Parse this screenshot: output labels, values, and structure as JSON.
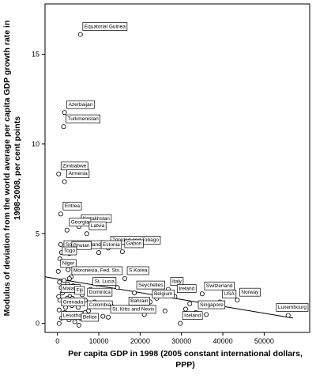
{
  "chart_data": {
    "type": "scatter",
    "x_label": [
      "Per capita GDP in 1998 (2005 constant international dollars,",
      "PPP)"
    ],
    "y_label": [
      "Modulus of deviation from the world average per capita GDP growth rate in",
      "1998-2008, per cent points"
    ],
    "xlim": [
      -3000,
      61000
    ],
    "ylim": [
      -0.5,
      17.8
    ],
    "xticks": [
      0,
      10000,
      20000,
      30000,
      40000,
      50000
    ],
    "yticks": [
      0,
      5,
      10,
      15
    ],
    "grid": false,
    "labeled_points": {
      "labels": [
        "Equatorial Guinea",
        "Azerbaijan",
        "Turkmenistan",
        "Zimbabwe",
        "Armenia",
        "Eritrea",
        "Kazakhstan",
        "Georgia",
        "Latvia",
        "Trinidad and Tobago",
        "Solomon Islands",
        "Bhutan",
        "Estonia",
        "Gabon",
        "Togo",
        "Niger",
        "Moronesia, Fed. Sts.",
        "S.Korea",
        "Italy",
        "St. Lucia",
        "Seychelles",
        "Switzerland",
        "Malawi",
        "Fiji",
        "Ireland",
        "Norway",
        "USA",
        "Dominica",
        "Belgium",
        "Bahrain",
        "Grenada",
        "Colombia",
        "Singapore",
        "Luxembourg",
        "St. Kitts and Nevis",
        "Iceland",
        "Lesotho",
        "Belize"
      ],
      "x": [
        5560,
        1700,
        1500,
        300,
        1700,
        800,
        5200,
        2300,
        7100,
        12300,
        1000,
        2900,
        10000,
        15700,
        600,
        200,
        2900,
        16300,
        26800,
        8000,
        18600,
        35000,
        300,
        3600,
        28400,
        43500,
        39300,
        6700,
        22400,
        16700,
        400,
        6700,
        33500,
        55800,
        12300,
        29700,
        400,
        5200
      ],
      "y": [
        16.1,
        11.75,
        10.96,
        8.33,
        7.9,
        6.1,
        5.4,
        5.2,
        5.0,
        4.2,
        3.95,
        3.9,
        3.95,
        4.0,
        3.6,
        2.9,
        2.5,
        2.5,
        1.9,
        1.9,
        1.7,
        1.65,
        1.5,
        1.4,
        1.5,
        1.3,
        1.2,
        1.3,
        1.2,
        0.8,
        0.75,
        0.6,
        0.6,
        0.45,
        0.35,
        0.0,
        0.0,
        -0.1
      ]
    },
    "other_points": {
      "x": [
        500,
        900,
        1200,
        1500,
        2000,
        2500,
        3000,
        3500,
        4000,
        4500,
        1000,
        1800,
        2200,
        2800,
        3300,
        600,
        1400,
        2600,
        3800,
        5000,
        6000,
        7500,
        9000,
        11000,
        13000,
        14500,
        20000,
        21000,
        24000,
        26000,
        31000,
        32000,
        36000,
        38000,
        800,
        1600,
        2400,
        4200,
        5500,
        9500
      ],
      "y": [
        2.3,
        2.0,
        1.7,
        1.2,
        0.9,
        2.2,
        1.5,
        1.0,
        0.5,
        1.8,
        0.3,
        0.6,
        1.1,
        0.2,
        2.6,
        1.3,
        3.3,
        3.0,
        2.1,
        0.9,
        1.6,
        0.7,
        1.2,
        0.4,
        1.0,
        2.0,
        0.9,
        0.5,
        1.4,
        0.7,
        0.8,
        1.1,
        0.5,
        1.0,
        4.4,
        2.4,
        1.4,
        0.1,
        0.3,
        2.2
      ]
    },
    "fit_line": {
      "x": [
        -3000,
        57000
      ],
      "y": [
        2.6,
        0.3
      ]
    }
  }
}
